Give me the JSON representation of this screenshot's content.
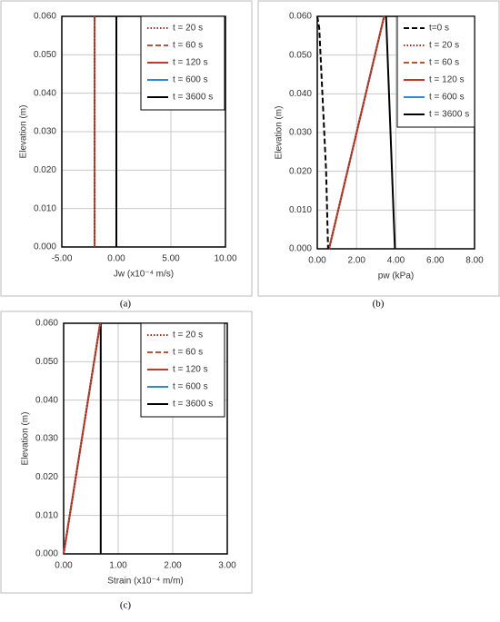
{
  "chart_data": [
    {
      "type": "line",
      "caption": "(a)",
      "x_label": "Jw (x10⁻⁴ m/s)",
      "y_label": "Elevation (m)",
      "xlim": [
        -5,
        10
      ],
      "xticks": [
        {
          "value": -5,
          "label": "-5.00"
        },
        {
          "value": 0,
          "label": "0.00"
        },
        {
          "value": 5,
          "label": "5.00"
        },
        {
          "value": 10,
          "label": "10.00"
        }
      ],
      "ylim": [
        0,
        0.06
      ],
      "yticks": [
        {
          "value": 0,
          "label": "0.000"
        },
        {
          "value": 0.01,
          "label": "0.010"
        },
        {
          "value": 0.02,
          "label": "0.020"
        },
        {
          "value": 0.03,
          "label": "0.030"
        },
        {
          "value": 0.04,
          "label": "0.040"
        },
        {
          "value": 0.05,
          "label": "0.050"
        },
        {
          "value": 0.06,
          "label": "0.060"
        }
      ],
      "grid": true,
      "series": [
        {
          "name": "t = 20 s",
          "color": "#a32a1e",
          "dash": "dotted",
          "x": [
            -2,
            -2
          ],
          "values": [
            0,
            0.06
          ]
        },
        {
          "name": "t = 60 s",
          "color": "#b5553a",
          "dash": "dashed",
          "x": [
            -2,
            -2
          ],
          "values": [
            0,
            0.06
          ]
        },
        {
          "name": "t = 120 s",
          "color": "#c0392b",
          "dash": "solid",
          "x": [
            -2,
            -2
          ],
          "values": [
            0,
            0.06
          ]
        },
        {
          "name": "t = 600 s",
          "color": "#2e86de",
          "dash": "solid",
          "x": [
            -2,
            -2
          ],
          "values": [
            0,
            0.06
          ]
        },
        {
          "name": "t = 3600 s",
          "color": "#000000",
          "dash": "solid",
          "x": [
            0,
            0
          ],
          "values": [
            0,
            0.06
          ]
        }
      ]
    },
    {
      "type": "line",
      "caption": "(b)",
      "x_label": "pw (kPa)",
      "y_label": "Elevation (m)",
      "xlim": [
        0,
        8
      ],
      "xticks": [
        {
          "value": 0,
          "label": "0.00"
        },
        {
          "value": 2,
          "label": "2.00"
        },
        {
          "value": 4,
          "label": "4.00"
        },
        {
          "value": 6,
          "label": "6.00"
        },
        {
          "value": 8,
          "label": "8.00"
        }
      ],
      "ylim": [
        0,
        0.06
      ],
      "yticks": [
        {
          "value": 0,
          "label": "0.000"
        },
        {
          "value": 0.01,
          "label": "0.010"
        },
        {
          "value": 0.02,
          "label": "0.020"
        },
        {
          "value": 0.03,
          "label": "0.030"
        },
        {
          "value": 0.04,
          "label": "0.040"
        },
        {
          "value": 0.05,
          "label": "0.050"
        },
        {
          "value": 0.06,
          "label": "0.060"
        }
      ],
      "grid": true,
      "series": [
        {
          "name": "t=0 s",
          "color": "#000000",
          "dash": "dashed",
          "x": [
            0,
            0.1,
            0.45,
            0.55
          ],
          "values": [
            0.06,
            0.057,
            0.02,
            0
          ]
        },
        {
          "name": "t = 20 s",
          "color": "#a32a1e",
          "dash": "dotted",
          "x": [
            0.6,
            3.4
          ],
          "values": [
            0,
            0.06
          ]
        },
        {
          "name": "t = 60 s",
          "color": "#b5553a",
          "dash": "dashed",
          "x": [
            0.6,
            3.4
          ],
          "values": [
            0,
            0.06
          ]
        },
        {
          "name": "t = 120 s",
          "color": "#c0392b",
          "dash": "solid",
          "x": [
            0.6,
            3.4
          ],
          "values": [
            0,
            0.06
          ]
        },
        {
          "name": "t = 600 s",
          "color": "#2e86de",
          "dash": "solid",
          "x": [
            0.6,
            3.4
          ],
          "values": [
            0,
            0.06
          ]
        },
        {
          "name": "t = 3600 s",
          "color": "#000000",
          "dash": "solid",
          "x": [
            3.5,
            3.95
          ],
          "values": [
            0.06,
            0
          ]
        }
      ]
    },
    {
      "type": "line",
      "caption": "(c)",
      "x_label": "Strain (x10⁻⁴ m/m)",
      "y_label": "Elevation (m)",
      "xlim": [
        0,
        3
      ],
      "xticks": [
        {
          "value": 0,
          "label": "0.00"
        },
        {
          "value": 1,
          "label": "1.00"
        },
        {
          "value": 2,
          "label": "2.00"
        },
        {
          "value": 3,
          "label": "3.00"
        }
      ],
      "ylim": [
        0,
        0.06
      ],
      "yticks": [
        {
          "value": 0,
          "label": "0.000"
        },
        {
          "value": 0.01,
          "label": "0.010"
        },
        {
          "value": 0.02,
          "label": "0.020"
        },
        {
          "value": 0.03,
          "label": "0.030"
        },
        {
          "value": 0.04,
          "label": "0.040"
        },
        {
          "value": 0.05,
          "label": "0.050"
        },
        {
          "value": 0.06,
          "label": "0.060"
        }
      ],
      "grid": true,
      "series": [
        {
          "name": "t = 20 s",
          "color": "#a32a1e",
          "dash": "dotted",
          "x": [
            0,
            0.67
          ],
          "values": [
            0,
            0.06
          ]
        },
        {
          "name": "t = 60 s",
          "color": "#b5553a",
          "dash": "dashed",
          "x": [
            0,
            0.67
          ],
          "values": [
            0,
            0.06
          ]
        },
        {
          "name": "t = 120 s",
          "color": "#c0392b",
          "dash": "solid",
          "x": [
            0,
            0.67
          ],
          "values": [
            0,
            0.06
          ]
        },
        {
          "name": "t = 600 s",
          "color": "#2e86de",
          "dash": "solid",
          "x": [
            0,
            0.67
          ],
          "values": [
            0,
            0.06
          ]
        },
        {
          "name": "t = 3600 s",
          "color": "#000000",
          "dash": "solid",
          "x": [
            0.68,
            0.68
          ],
          "values": [
            0,
            0.06
          ]
        }
      ]
    }
  ]
}
